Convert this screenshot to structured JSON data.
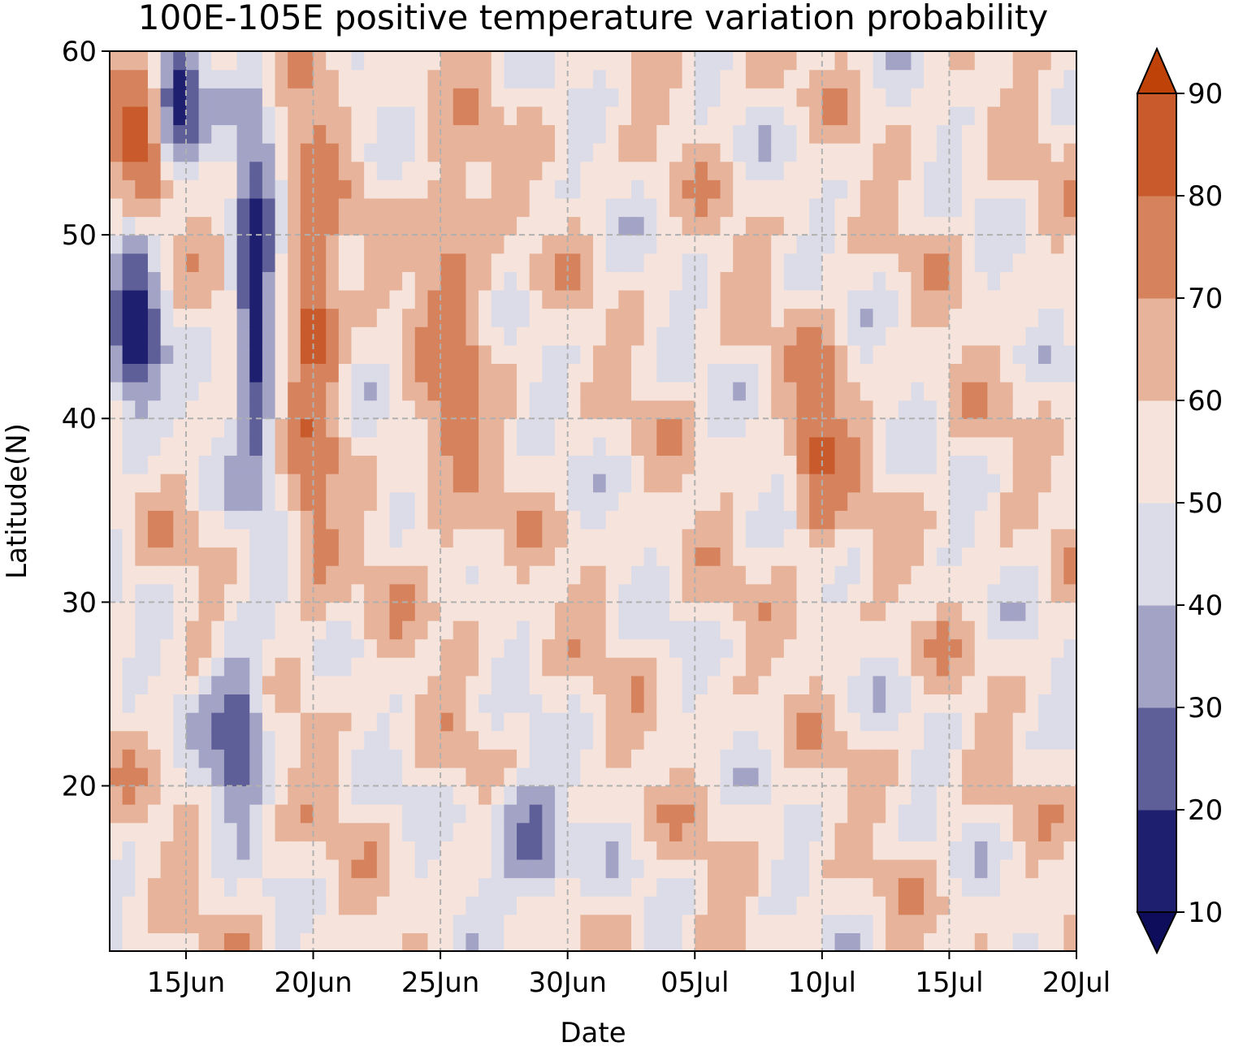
{
  "chart_data": {
    "type": "heatmap",
    "subtype": "filled-contour",
    "title": "100E-105E positive temperature variation probability",
    "xlabel": "Date",
    "ylabel": "Latitude(N)",
    "x_range": [
      "2023-06-12",
      "2023-07-20"
    ],
    "y_range": [
      11,
      60
    ],
    "x_ticks": [
      "15Jun",
      "20Jun",
      "25Jun",
      "30Jun",
      "05Jul",
      "10Jul",
      "15Jul",
      "20Jul"
    ],
    "x_tick_days": [
      3,
      8,
      13,
      18,
      23,
      28,
      33,
      38
    ],
    "y_ticks": [
      "20",
      "30",
      "40",
      "50",
      "60"
    ],
    "y_tick_values": [
      20,
      30,
      40,
      50,
      60
    ],
    "grid": true,
    "colorbar": {
      "levels": [
        10,
        20,
        30,
        40,
        50,
        60,
        70,
        80,
        90
      ],
      "labels": [
        "10",
        "20",
        "30",
        "40",
        "50",
        "60",
        "70",
        "80",
        "90"
      ],
      "extend": "both",
      "colors": [
        "#0d0d5c",
        "#1f1f70",
        "#5e5e99",
        "#a3a3c6",
        "#dcdce8",
        "#f6e4dc",
        "#e7b39a",
        "#d6825d",
        "#c85a2c",
        "#bf4208"
      ]
    },
    "bands": [
      {
        "name": "early-warm",
        "days": [
          0,
          2.5
        ],
        "lat": [
          50,
          60
        ],
        "value": 88
      },
      {
        "name": "early-cold",
        "days": [
          0,
          2
        ],
        "lat": [
          40,
          50
        ],
        "value": 12
      },
      {
        "name": "cold-streak-1",
        "days": [
          2,
          3.5
        ],
        "lat": [
          54,
          60
        ],
        "value": 12
      },
      {
        "name": "cold-streak-2",
        "days": [
          5,
          6.5
        ],
        "lat": [
          35,
          58
        ],
        "value": 14
      },
      {
        "name": "warm-streak-2",
        "days": [
          7,
          9
        ],
        "lat": [
          30,
          60
        ],
        "value": 82
      },
      {
        "name": "cold-blob-south",
        "days": [
          4,
          6
        ],
        "lat": [
          19,
          27
        ],
        "value": 18
      },
      {
        "name": "warm-streak-25jun",
        "days": [
          12,
          15
        ],
        "lat": [
          32,
          56
        ],
        "value": 75
      },
      {
        "name": "cold-blob-30jun",
        "days": [
          15,
          18
        ],
        "lat": [
          14,
          20
        ],
        "value": 25
      },
      {
        "name": "warm-10jul",
        "days": [
          27,
          29
        ],
        "lat": [
          33,
          44
        ],
        "value": 82
      }
    ]
  }
}
